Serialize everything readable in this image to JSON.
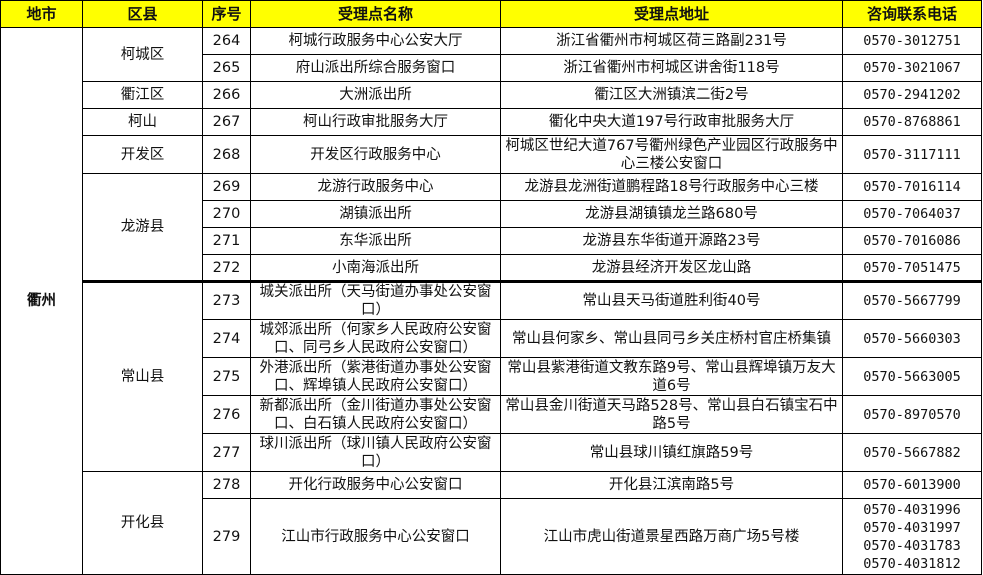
{
  "header": {
    "city": "地市",
    "district": "区县",
    "no": "序号",
    "name": "受理点名称",
    "address": "受理点地址",
    "phone": "咨询联系电话"
  },
  "colors": {
    "header_bg": "#ffff00",
    "border": "#000000"
  },
  "city": "衢州",
  "districts": [
    {
      "name": "柯城区",
      "span": 2
    },
    {
      "name": "衢江区",
      "span": 1
    },
    {
      "name": "柯山",
      "span": 1
    },
    {
      "name": "开发区",
      "span": 1
    },
    {
      "name": "龙游县",
      "span": 4
    },
    {
      "name": "常山县",
      "span": 5
    },
    {
      "name": "开化县",
      "span": 2
    }
  ],
  "rows": [
    {
      "no": "264",
      "name": "柯城行政服务中心公安大厅",
      "address": "浙江省衢州市柯城区荷三路副231号",
      "phones": [
        "0570-3012751"
      ]
    },
    {
      "no": "265",
      "name": "府山派出所综合服务窗口",
      "address": "浙江省衢州市柯城区讲舍街118号",
      "phones": [
        "0570-3021067"
      ]
    },
    {
      "no": "266",
      "name": "大洲派出所",
      "address": "衢江区大洲镇滨二街2号",
      "phones": [
        "0570-2941202"
      ]
    },
    {
      "no": "267",
      "name": "柯山行政审批服务大厅",
      "address": "衢化中央大道197号行政审批服务大厅",
      "phones": [
        "0570-8768861"
      ]
    },
    {
      "no": "268",
      "name": "开发区行政服务中心",
      "address": "柯城区世纪大道767号衢州绿色产业园区行政服务中心三楼公安窗口",
      "phones": [
        "0570-3117111"
      ]
    },
    {
      "no": "269",
      "name": "龙游行政服务中心",
      "address": "龙游县龙洲街道鹏程路18号行政服务中心三楼",
      "phones": [
        "0570-7016114"
      ]
    },
    {
      "no": "270",
      "name": "湖镇派出所",
      "address": "龙游县湖镇镇龙兰路680号",
      "phones": [
        "0570-7064037"
      ]
    },
    {
      "no": "271",
      "name": "东华派出所",
      "address": "龙游县东华街道开源路23号",
      "phones": [
        "0570-7016086"
      ]
    },
    {
      "no": "272",
      "name": "小南海派出所",
      "address": "龙游县经济开发区龙山路",
      "phones": [
        "0570-7051475"
      ]
    },
    {
      "no": "273",
      "name": "城关派出所（天马街道办事处公安窗口）",
      "address": "常山县天马街道胜利街40号",
      "phones": [
        "0570-5667799"
      ]
    },
    {
      "no": "274",
      "name": "城郊派出所（何家乡人民政府公安窗口、同弓乡人民政府公安窗口）",
      "address": "常山县何家乡、常山县同弓乡关庄桥村官庄桥集镇",
      "phones": [
        "0570-5660303"
      ]
    },
    {
      "no": "275",
      "name": "外港派出所（紫港街道办事处公安窗口、辉埠镇人民政府公安窗口）",
      "address": "常山县紫港街道文教东路9号、常山县辉埠镇万友大道6号",
      "phones": [
        "0570-5663005"
      ]
    },
    {
      "no": "276",
      "name": "新都派出所（金川街道办事处公安窗口、白石镇人民政府公安窗口）",
      "address": "常山县金川街道天马路528号、常山县白石镇宝石中路5号",
      "phones": [
        "0570-8970570"
      ]
    },
    {
      "no": "277",
      "name": "球川派出所（球川镇人民政府公安窗口）",
      "address": "常山县球川镇红旗路59号",
      "phones": [
        "0570-5667882"
      ]
    },
    {
      "no": "278",
      "name": "开化行政服务中心公安窗口",
      "address": "开化县江滨南路5号",
      "phones": [
        "0570-6013900"
      ]
    },
    {
      "no": "279",
      "name": "江山市行政服务中心公安窗口",
      "address": "江山市虎山街道景星西路万商广场5号楼",
      "phones": [
        "0570-4031996",
        "0570-4031997",
        "0570-4031783",
        "0570-4031812"
      ]
    }
  ]
}
